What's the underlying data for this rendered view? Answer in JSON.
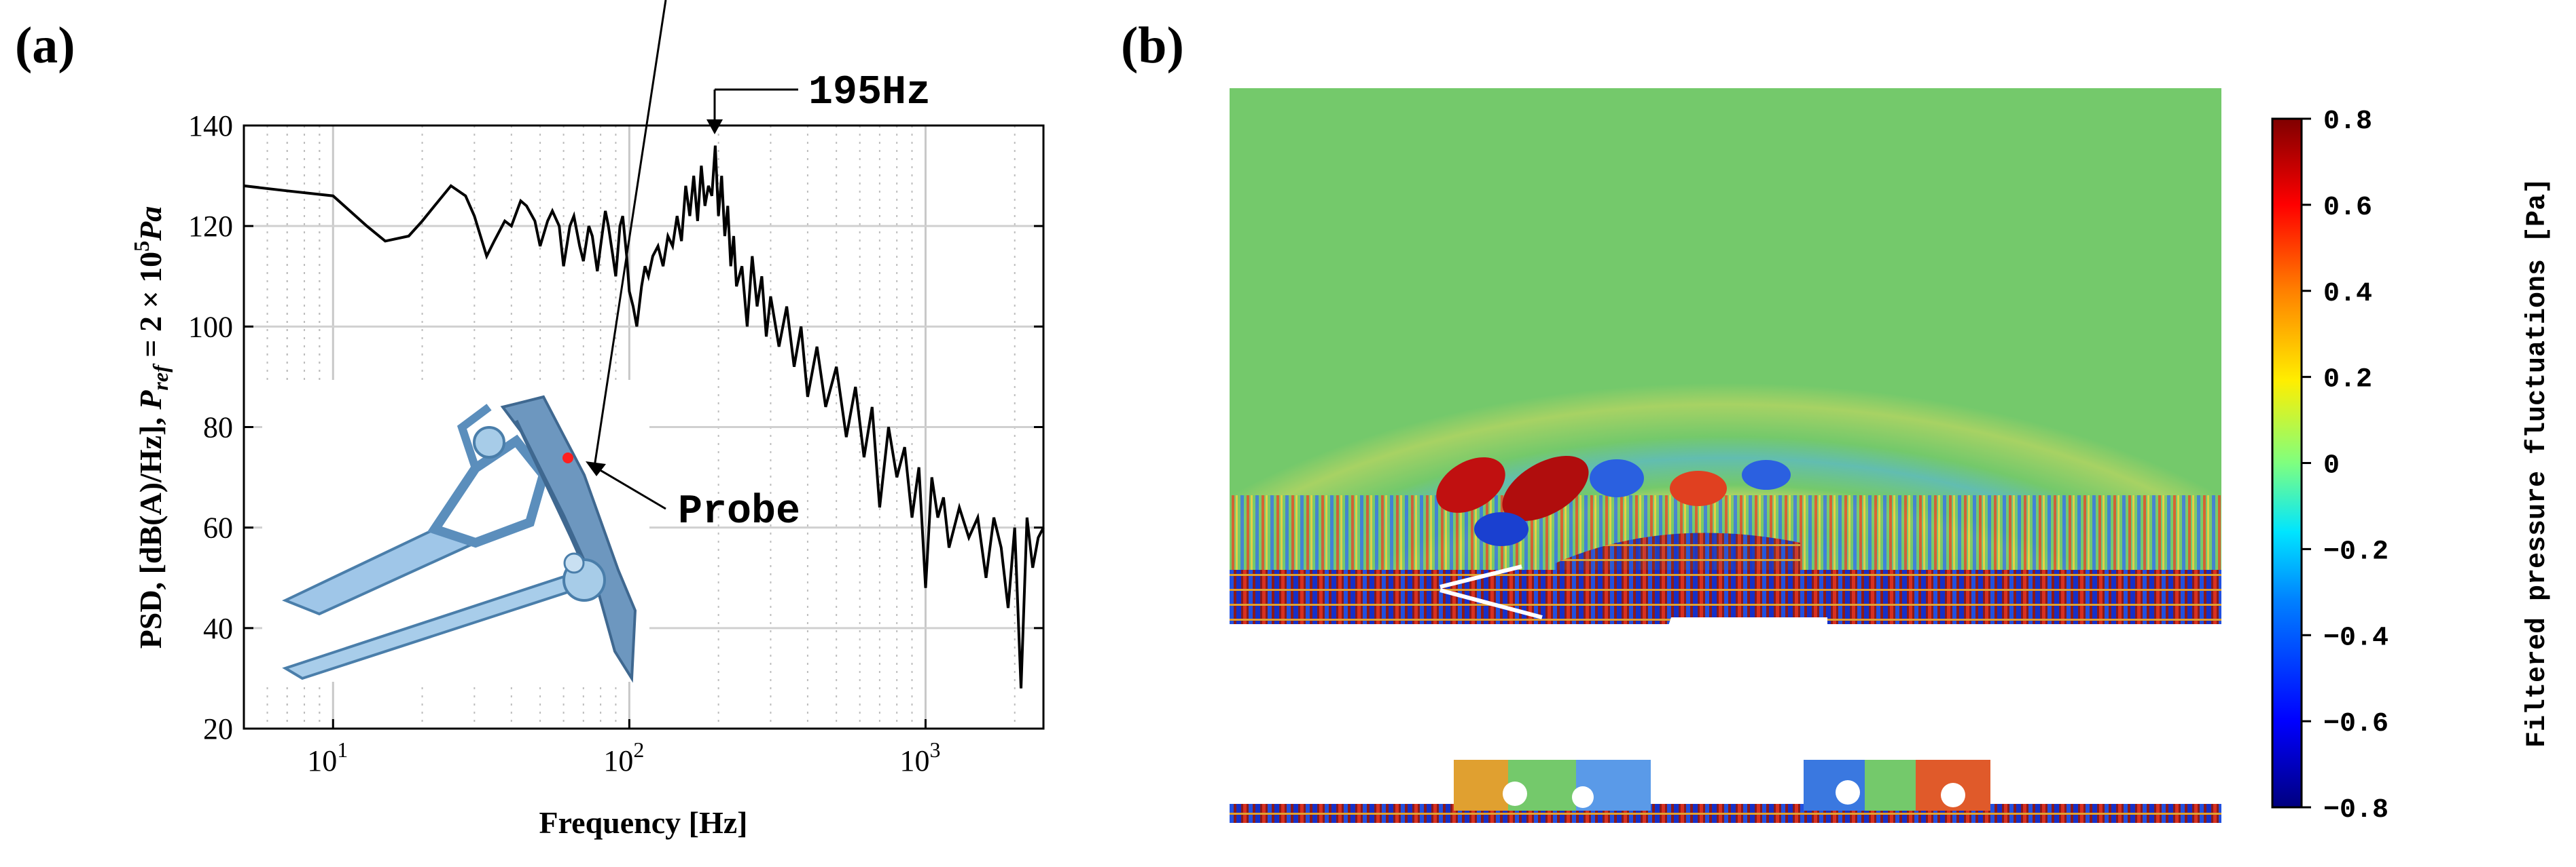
{
  "chart_data": [
    {
      "panel_label": "(a)",
      "type": "line",
      "title": "",
      "xlabel": "Frequency [Hz]",
      "ylabel": "PSD, [dB(A)/Hz], P_ref = 2 × 10^5 Pa",
      "ylabel_parts": {
        "main": "PSD, [dB(A)/Hz], ",
        "p": "P",
        "sub": "ref",
        "rest": " = 2 × 10",
        "sup": "5",
        "unit": "Pa"
      },
      "x_scale": "log",
      "xlim": [
        5,
        2500
      ],
      "ylim": [
        20,
        140
      ],
      "x_tick_labels": [
        {
          "value": 10,
          "base": "10",
          "exp": "1"
        },
        {
          "value": 100,
          "base": "10",
          "exp": "2"
        },
        {
          "value": 1000,
          "base": "10",
          "exp": "3"
        }
      ],
      "y_ticks": [
        "20",
        "40",
        "60",
        "80",
        "100",
        "120",
        "140"
      ],
      "grid": true,
      "annotations": [
        {
          "text": "195Hz",
          "x": 195,
          "y": 136
        },
        {
          "text": "Probe"
        }
      ],
      "series": [
        {
          "x": [
            5,
            7,
            10,
            13,
            15,
            18,
            20,
            22,
            25,
            28,
            30,
            33,
            35,
            38,
            40,
            43,
            45,
            48,
            50,
            53,
            55,
            58,
            60,
            63,
            65,
            68,
            70,
            73,
            75,
            78,
            80,
            83,
            85,
            88,
            90,
            93,
            95,
            98,
            100,
            103,
            106,
            110,
            113,
            116,
            120,
            125,
            130,
            135,
            140,
            145,
            150,
            155,
            160,
            165,
            170,
            175,
            180,
            185,
            190,
            195,
            200,
            205,
            210,
            215,
            220,
            225,
            230,
            240,
            250,
            260,
            270,
            280,
            290,
            300,
            320,
            340,
            360,
            380,
            400,
            430,
            460,
            500,
            540,
            580,
            620,
            660,
            700,
            750,
            800,
            850,
            900,
            950,
            1000,
            1050,
            1100,
            1150,
            1200,
            1300,
            1400,
            1500,
            1600,
            1700,
            1800,
            1900,
            2000,
            2100,
            2200,
            2300,
            2400,
            2500
          ],
          "y": [
            128,
            127,
            126,
            120,
            117,
            118,
            121,
            124,
            128,
            126,
            122,
            114,
            117,
            121,
            120,
            125,
            124,
            121,
            116,
            121,
            123,
            120,
            112,
            120,
            122,
            116,
            113,
            120,
            118,
            111,
            116,
            123,
            120,
            114,
            110,
            120,
            122,
            114,
            107,
            104,
            100,
            108,
            112,
            110,
            114,
            116,
            112,
            118,
            116,
            122,
            117,
            128,
            122,
            130,
            121,
            132,
            124,
            128,
            126,
            136,
            122,
            130,
            118,
            124,
            112,
            118,
            108,
            112,
            100,
            114,
            104,
            110,
            98,
            106,
            96,
            104,
            92,
            100,
            86,
            96,
            84,
            92,
            78,
            88,
            74,
            84,
            64,
            80,
            70,
            76,
            62,
            72,
            48,
            70,
            62,
            66,
            56,
            64,
            58,
            62,
            50,
            62,
            56,
            44,
            60,
            28,
            62,
            52,
            58,
            60
          ]
        }
      ]
    },
    {
      "panel_label": "(b)",
      "type": "heatmap",
      "title": "",
      "colorbar": {
        "label": "Filtered pressure fluctuations [Pa]",
        "min": -0.8,
        "max": 0.8,
        "ticks": [
          "0.8",
          "0.6",
          "0.4",
          "0.2",
          "0",
          "−0.2",
          "−0.4",
          "−0.6",
          "−0.8"
        ],
        "colors": [
          "#00007f",
          "#0000ff",
          "#0080ff",
          "#00e5ff",
          "#7fff7f",
          "#ffee00",
          "#ff8000",
          "#ff0000",
          "#7f0000"
        ]
      },
      "background_color": "#74c96b"
    }
  ]
}
